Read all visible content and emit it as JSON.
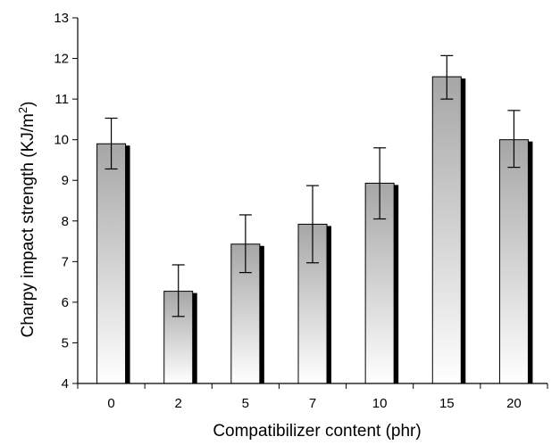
{
  "chart_data": {
    "type": "bar",
    "title": "",
    "xlabel": "Compatibilizer content (phr)",
    "ylabel": "Charpy impact strength (KJ/m",
    "ylabel_sup": "2",
    "ylabel_close": ")",
    "categories": [
      "0",
      "2",
      "5",
      "7",
      "10",
      "15",
      "20"
    ],
    "series": [
      {
        "values": [
          9.9,
          6.27,
          7.43,
          7.92,
          8.93,
          11.55,
          10.0
        ],
        "err_high": [
          10.53,
          6.92,
          8.15,
          8.87,
          9.8,
          12.07,
          10.72
        ],
        "err_low": [
          9.28,
          5.65,
          6.73,
          6.97,
          8.05,
          11.0,
          9.32
        ]
      }
    ],
    "ylim": [
      4,
      13
    ],
    "yticks": [
      "4",
      "5",
      "6",
      "7",
      "8",
      "9",
      "10",
      "11",
      "12",
      "13"
    ],
    "grid": false,
    "legend": "none",
    "bar_fill": "gradient gray to white",
    "colors": {
      "bar_top": "#a6a6a6",
      "bar_bottom": "#ffffff",
      "shadow": "#000000",
      "axis": "#000000"
    }
  }
}
